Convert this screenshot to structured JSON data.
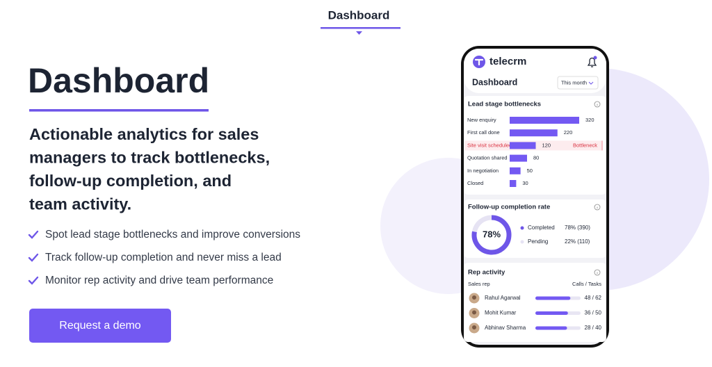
{
  "tab": "Dashboard",
  "hero": {
    "title": "Dashboard",
    "subtitle_lines": [
      "Actionable analytics for sales",
      "managers to track bottlenecks,",
      "follow-up completion, and",
      "team activity."
    ],
    "bullets": [
      "Spot lead stage bottlenecks and improve conversions",
      "Track follow-up completion and never miss a lead",
      "Monitor rep activity and drive team performance"
    ],
    "cta": "Request a demo"
  },
  "phone": {
    "brand": "telecrm",
    "screen_title": "Dashboard",
    "period": "This month",
    "lead_stages": {
      "title": "Lead stage bottlenecks",
      "stages": [
        {
          "name": "New enquiry",
          "value": 320
        },
        {
          "name": "First call done",
          "value": 220
        },
        {
          "name": "Site visit scheduled",
          "value": 120,
          "flag": "Bottleneck"
        },
        {
          "name": "Quotation shared",
          "value": 80
        },
        {
          "name": "In negotiation",
          "value": 50
        },
        {
          "name": "Closed",
          "value": 30
        }
      ]
    },
    "follow_up": {
      "title": "Follow-up completion rate",
      "center_label": "78%",
      "segments": [
        {
          "name": "Completed",
          "value": 78,
          "value_label": "78% (390)",
          "color": "#6e56e8"
        },
        {
          "name": "Pending",
          "value": 22,
          "value_label": "22% (110)",
          "color": "#e6e3f3"
        }
      ]
    },
    "rep_activity": {
      "title": "Rep activity",
      "column_left": "Sales rep",
      "column_right": "Calls / Tasks",
      "reps": [
        {
          "name": "Rahul Agarwal",
          "done": 48,
          "total": 62,
          "label": "48 / 62"
        },
        {
          "name": "Mohit Kumar",
          "done": 36,
          "total": 50,
          "label": "36 / 50"
        },
        {
          "name": "Abhinav Sharma",
          "done": 28,
          "total": 40,
          "label": "28 / 40"
        }
      ]
    }
  }
}
